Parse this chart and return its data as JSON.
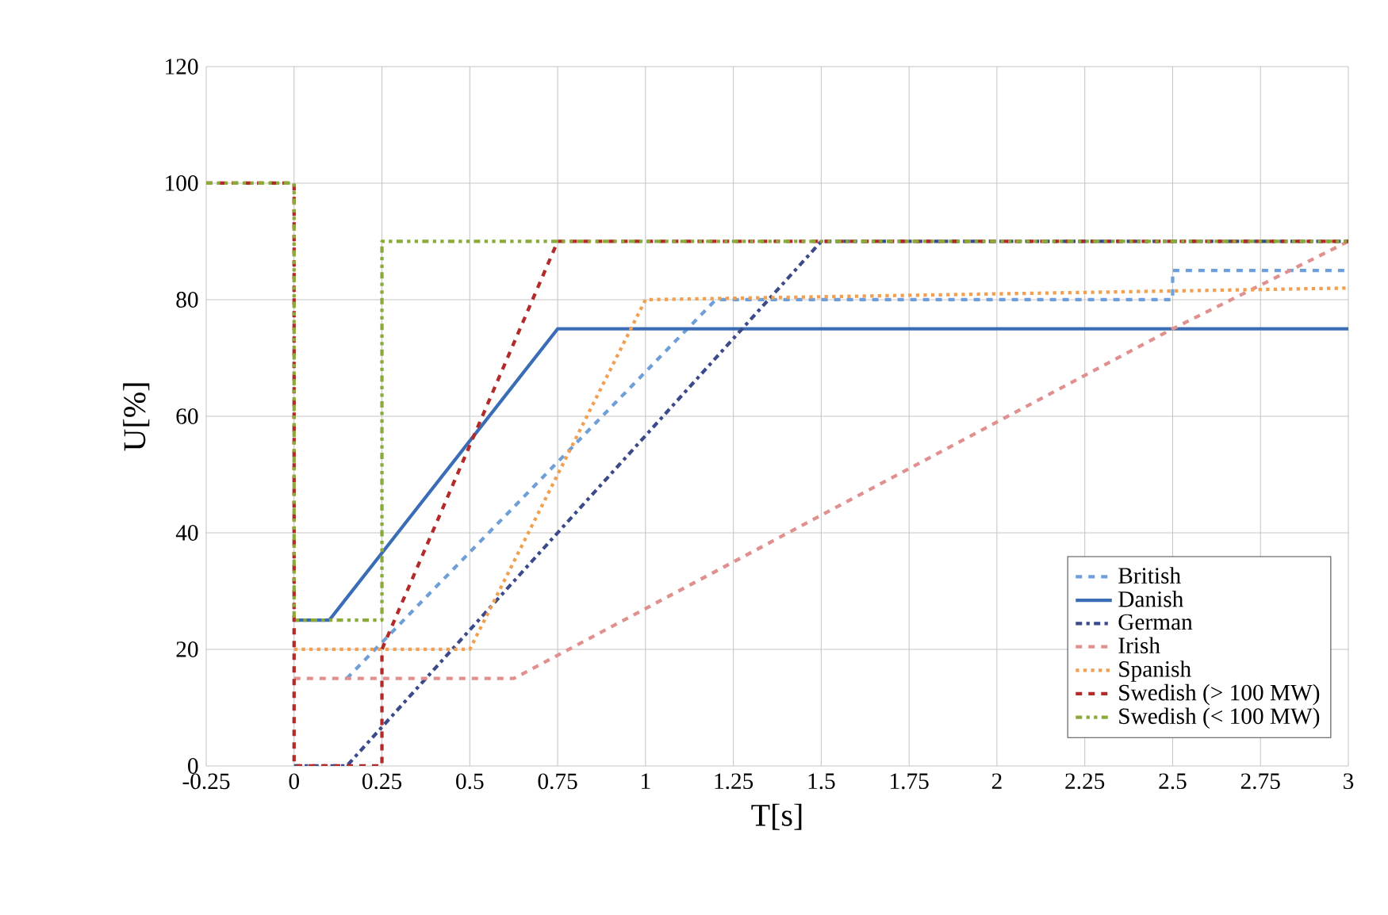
{
  "chart_data": {
    "type": "line",
    "xlabel": "T[s]",
    "ylabel": "U[%]",
    "xlim": [
      -0.25,
      3
    ],
    "ylim": [
      0,
      120
    ],
    "xticks": [
      -0.25,
      0,
      0.25,
      0.5,
      0.75,
      1,
      1.25,
      1.5,
      1.75,
      2,
      2.25,
      2.5,
      2.75,
      3
    ],
    "yticks": [
      0,
      20,
      40,
      60,
      80,
      100,
      120
    ],
    "grid": true,
    "legend": "bottom right",
    "marker": "none",
    "series": [
      {
        "name": "British",
        "color": "#6f9fd8",
        "line_style": "dashed",
        "x": [
          0.15,
          1.2,
          2.5,
          2.5,
          3
        ],
        "values": [
          15,
          80,
          80,
          85,
          85
        ]
      },
      {
        "name": "Danish",
        "color": "#3a6db5",
        "line_style": "solid",
        "x": [
          0,
          0.1,
          0.75,
          3
        ],
        "values": [
          25,
          25,
          75,
          75
        ]
      },
      {
        "name": "German",
        "color": "#3b4a8a",
        "line_style": "dashdot",
        "x": [
          0,
          0.15,
          1.5,
          3
        ],
        "values": [
          0,
          0,
          90,
          90
        ]
      },
      {
        "name": "Irish",
        "color": "#e0908f",
        "line_style": "dashed",
        "x": [
          0,
          0.625,
          2.5,
          3
        ],
        "values": [
          15,
          15,
          75,
          90
        ]
      },
      {
        "name": "Spanish",
        "color": "#f0a050",
        "line_style": "dotted",
        "x": [
          0,
          0.5,
          1,
          3
        ],
        "values": [
          20,
          20,
          80,
          82
        ]
      },
      {
        "name": "Swedish (> 100 MW)",
        "color": "#b22a2a",
        "line_style": "dashed",
        "x": [
          -0.25,
          0,
          0,
          0.25,
          0.25,
          0.75,
          3
        ],
        "values": [
          100,
          100,
          0,
          0,
          20,
          90,
          90
        ]
      },
      {
        "name": "Swedish (< 100 MW)",
        "color": "#8aaa3a",
        "line_style": "dashdotdot",
        "x": [
          -0.25,
          0,
          0,
          0.25,
          0.25,
          3
        ],
        "values": [
          100,
          100,
          25,
          25,
          90,
          90
        ]
      }
    ]
  }
}
